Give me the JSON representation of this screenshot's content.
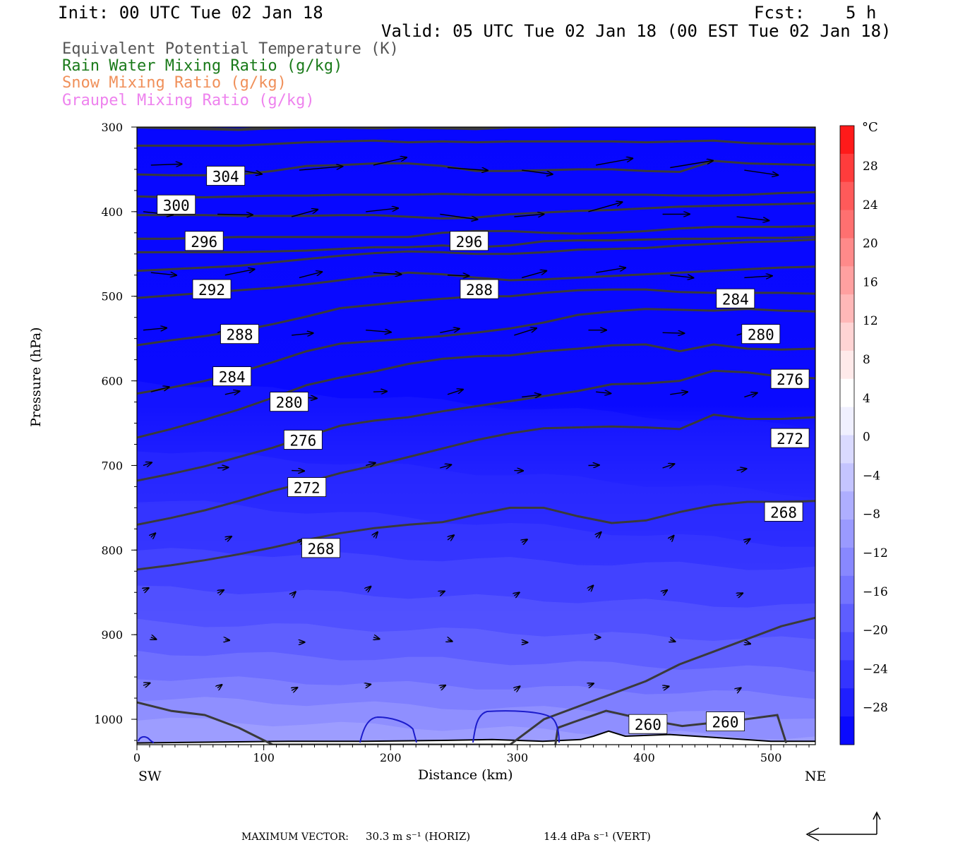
{
  "header": {
    "init": "Init: 00 UTC Tue 02 Jan 18",
    "fcst": "Fcst:    5 h",
    "valid": "Valid: 05 UTC Tue 02 Jan 18 (00 EST Tue 02 Jan 18)"
  },
  "legend": [
    {
      "label": "Equivalent Potential Temperature (K)",
      "color": "#555555"
    },
    {
      "label": "Rain Water Mixing Ratio (g/kg)",
      "color": "#1a7a1a"
    },
    {
      "label": "Snow Mixing Ratio (g/kg)",
      "color": "#f0905a"
    },
    {
      "label": "Graupel Mixing Ratio (g/kg)",
      "color": "#ee82ee"
    }
  ],
  "chart_data": {
    "type": "heatmap",
    "xlabel": "Distance (km)",
    "ylabel": "Pressure (hPa)",
    "xlim": [
      0,
      535
    ],
    "ylim": [
      1030,
      300
    ],
    "x_ticks": [
      "0",
      "100",
      "200",
      "300",
      "400",
      "500"
    ],
    "y_ticks": [
      "300",
      "400",
      "500",
      "600",
      "700",
      "800",
      "900",
      "1000"
    ],
    "x_end_labels": {
      "left": "SW",
      "right": "NE"
    },
    "colorbar": {
      "unit": "°C",
      "ticks": [
        "28",
        "24",
        "20",
        "16",
        "12",
        "8",
        "4",
        "0",
        "−4",
        "−8",
        "−12",
        "−16",
        "−20",
        "−24",
        "−28"
      ],
      "colors": [
        "#ff1a1a",
        "#ff3c3c",
        "#ff5a5a",
        "#ff7070",
        "#ff8a8a",
        "#ffa0a0",
        "#ffb8b8",
        "#ffd4d4",
        "#ffeaea",
        "#ffffff",
        "#f0f0ff",
        "#dadaff",
        "#c4c4ff",
        "#aeaeff",
        "#9a9aff",
        "#8888ff",
        "#7474ff",
        "#5e5eff",
        "#4a4aff",
        "#3434ff",
        "#1f1fff",
        "#0a0aff"
      ]
    },
    "theta_e_labels": [
      {
        "text": "304",
        "x": 70,
        "p": 358
      },
      {
        "text": "300",
        "x": 31,
        "p": 392
      },
      {
        "text": "296",
        "x": 53,
        "p": 435
      },
      {
        "text": "296",
        "x": 262,
        "p": 435
      },
      {
        "text": "292",
        "x": 59,
        "p": 492
      },
      {
        "text": "288",
        "x": 270,
        "p": 492
      },
      {
        "text": "284",
        "x": 472,
        "p": 503
      },
      {
        "text": "288",
        "x": 81,
        "p": 545
      },
      {
        "text": "280",
        "x": 492,
        "p": 545
      },
      {
        "text": "284",
        "x": 75,
        "p": 595
      },
      {
        "text": "276",
        "x": 515,
        "p": 598
      },
      {
        "text": "280",
        "x": 120,
        "p": 625
      },
      {
        "text": "276",
        "x": 131,
        "p": 670
      },
      {
        "text": "272",
        "x": 515,
        "p": 668
      },
      {
        "text": "272",
        "x": 134,
        "p": 726
      },
      {
        "text": "268",
        "x": 510,
        "p": 755
      },
      {
        "text": "268",
        "x": 145,
        "p": 798
      },
      {
        "text": "260",
        "x": 403,
        "p": 1006
      },
      {
        "text": "260",
        "x": 464,
        "p": 1003
      }
    ],
    "theta_e_contours": [
      {
        "p": [
          300,
          301,
          302,
          303,
          301,
          300,
          300,
          301,
          300,
          301,
          302,
          300,
          300,
          299,
          299,
          299,
          298,
          297,
          299,
          299,
          300
        ],
        "w": 4
      },
      {
        "p": [
          322,
          322,
          322,
          322,
          320,
          318,
          317,
          316,
          318,
          317,
          318,
          317,
          317,
          317,
          317,
          318,
          317,
          316,
          319,
          320,
          320
        ],
        "w": 3
      },
      {
        "p": [
          356,
          357,
          357,
          356,
          352,
          346,
          345,
          343,
          343,
          346,
          352,
          352,
          351,
          350,
          350,
          352,
          353,
          340,
          343,
          344,
          345
        ],
        "w": 3
      },
      {
        "p": [
          382,
          383,
          383,
          382,
          381,
          381,
          380,
          380,
          380,
          379,
          380,
          380,
          380,
          380,
          380,
          380,
          381,
          381,
          380,
          378,
          377
        ],
        "w": 3
      },
      {
        "p": [
          404,
          404,
          404,
          405,
          405,
          405,
          404,
          404,
          406,
          408,
          407,
          403,
          401,
          399,
          398,
          396,
          394,
          393,
          392,
          391,
          390
        ],
        "w": 3
      },
      {
        "p": [
          432,
          432,
          431,
          430,
          430,
          430,
          430,
          430,
          430,
          425,
          423,
          423,
          425,
          426,
          425,
          423,
          420,
          418,
          418,
          418,
          417
        ],
        "w": 3
      },
      {
        "p": [
          448,
          448,
          448,
          448,
          447,
          446,
          444,
          442,
          442,
          440,
          442,
          440,
          435,
          434,
          434,
          433,
          432,
          432,
          431,
          431,
          430
        ],
        "w": 3
      },
      {
        "p": [
          470,
          468,
          466,
          464,
          460,
          456,
          452,
          449,
          447,
          448,
          450,
          450,
          448,
          445,
          444,
          443,
          440,
          438,
          436,
          435,
          433
        ],
        "w": 3
      },
      {
        "p": [
          502,
          499,
          496,
          493,
          490,
          486,
          481,
          476,
          472,
          474,
          478,
          481,
          480,
          478,
          476,
          474,
          472,
          470,
          468,
          466,
          465
        ],
        "w": 3
      },
      {
        "p": [
          558,
          552,
          547,
          541,
          533,
          524,
          514,
          510,
          506,
          503,
          500,
          500,
          496,
          493,
          492,
          492,
          495,
          496,
          496,
          496,
          497
        ],
        "w": 3
      },
      {
        "p": [
          615,
          608,
          600,
          590,
          578,
          565,
          556,
          553,
          550,
          547,
          543,
          538,
          531,
          522,
          518,
          515,
          516,
          517,
          515,
          517,
          518
        ],
        "w": 3
      },
      {
        "p": [
          667,
          657,
          646,
          634,
          620,
          605,
          596,
          589,
          580,
          574,
          571,
          570,
          565,
          562,
          558,
          557,
          565,
          557,
          562,
          563,
          562
        ],
        "w": 3
      },
      {
        "p": [
          718,
          710,
          701,
          690,
          679,
          666,
          653,
          647,
          643,
          636,
          630,
          624,
          618,
          612,
          604,
          603,
          600,
          588,
          590,
          595,
          597
        ],
        "w": 3
      },
      {
        "p": [
          770,
          762,
          753,
          742,
          730,
          720,
          709,
          700,
          690,
          680,
          670,
          662,
          656,
          655,
          654,
          655,
          657,
          640,
          645,
          645,
          643
        ],
        "w": 3
      },
      {
        "p": [
          823,
          818,
          812,
          805,
          797,
          788,
          780,
          774,
          770,
          767,
          758,
          750,
          750,
          760,
          768,
          765,
          755,
          747,
          743,
          743,
          742
        ],
        "w": 3
      },
      {
        "p": [
          980,
          990,
          995,
          1010,
          1030,
          1030,
          1030,
          1030,
          1030,
          1030,
          1030,
          1030,
          1000,
          985,
          970,
          955,
          935,
          920,
          905,
          890,
          880
        ],
        "w": 3
      }
    ],
    "isotherms_c": [
      -4,
      -8,
      -12,
      -16,
      -20,
      -24,
      -28
    ],
    "max_vector": {
      "label": "MAXIMUM VECTOR:",
      "horiz": "30.3 m s⁻¹ (HORIZ)",
      "vert": "14.4 dPa s⁻¹ (VERT)"
    }
  }
}
